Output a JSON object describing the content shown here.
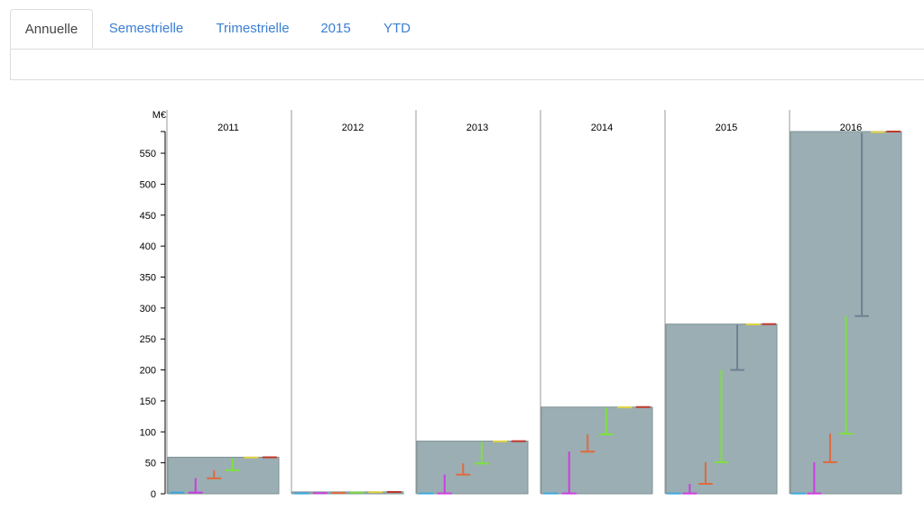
{
  "tabs": [
    {
      "label": "Annuelle",
      "active": true
    },
    {
      "label": "Semestrielle",
      "active": false
    },
    {
      "label": "Trimestrielle",
      "active": false
    },
    {
      "label": "2015",
      "active": false
    },
    {
      "label": "YTD",
      "active": false
    }
  ],
  "colors": {
    "tab_link": "#3a7fd4",
    "bar_fill": "#9aaeb3",
    "bar_stroke": "#7d9196",
    "panel_line": "#999999"
  },
  "chart_data": {
    "type": "bar",
    "yunit": "M€",
    "ylim": [
      0,
      585
    ],
    "yticks": [
      0,
      50,
      100,
      150,
      200,
      250,
      300,
      350,
      400,
      450,
      500,
      550
    ],
    "grid": false,
    "panels": [
      {
        "year": "2011",
        "total": 59,
        "segments": [
          {
            "color": "#3ba9e0",
            "start": 0,
            "end": 2
          },
          {
            "color": "#cc3de0",
            "start": 2,
            "end": 25
          },
          {
            "color": "#e06a3d",
            "start": 25,
            "end": 38
          },
          {
            "color": "#7fe03d",
            "start": 38,
            "end": 58
          },
          {
            "color": "#e0d23d",
            "start": 58,
            "end": 58.5
          },
          {
            "color": "#c0392b",
            "start": 58.5,
            "end": 59
          }
        ]
      },
      {
        "year": "2012",
        "total": 3,
        "segments": [
          {
            "color": "#3ba9e0",
            "start": 0,
            "end": 0.5
          },
          {
            "color": "#cc3de0",
            "start": 0.5,
            "end": 1
          },
          {
            "color": "#e06a3d",
            "start": 1,
            "end": 1.5
          },
          {
            "color": "#7fe03d",
            "start": 1.5,
            "end": 2
          },
          {
            "color": "#e0d23d",
            "start": 2,
            "end": 2.5
          },
          {
            "color": "#c0392b",
            "start": 2.5,
            "end": 3
          }
        ]
      },
      {
        "year": "2013",
        "total": 85,
        "segments": [
          {
            "color": "#3ba9e0",
            "start": 0,
            "end": 0.5
          },
          {
            "color": "#cc3de0",
            "start": 0.5,
            "end": 31
          },
          {
            "color": "#e06a3d",
            "start": 31,
            "end": 49
          },
          {
            "color": "#7fe03d",
            "start": 49,
            "end": 84
          },
          {
            "color": "#e0d23d",
            "start": 84,
            "end": 84.5
          },
          {
            "color": "#c0392b",
            "start": 84.5,
            "end": 85
          }
        ]
      },
      {
        "year": "2014",
        "total": 140,
        "segments": [
          {
            "color": "#3ba9e0",
            "start": 0,
            "end": 0.5
          },
          {
            "color": "#cc3de0",
            "start": 0.5,
            "end": 68
          },
          {
            "color": "#e06a3d",
            "start": 68,
            "end": 96
          },
          {
            "color": "#7fe03d",
            "start": 96,
            "end": 139
          },
          {
            "color": "#e0d23d",
            "start": 139,
            "end": 139.5
          },
          {
            "color": "#c0392b",
            "start": 139.5,
            "end": 140
          }
        ]
      },
      {
        "year": "2015",
        "total": 274,
        "segments": [
          {
            "color": "#3ba9e0",
            "start": 0,
            "end": 0.5
          },
          {
            "color": "#cc3de0",
            "start": 0.5,
            "end": 16
          },
          {
            "color": "#e06a3d",
            "start": 16,
            "end": 51
          },
          {
            "color": "#7fe03d",
            "start": 51,
            "end": 200
          },
          {
            "color": "#708090",
            "start": 200,
            "end": 273
          },
          {
            "color": "#e0d23d",
            "start": 273,
            "end": 273.5
          },
          {
            "color": "#c0392b",
            "start": 273.5,
            "end": 274
          }
        ]
      },
      {
        "year": "2016",
        "total": 585,
        "segments": [
          {
            "color": "#3ba9e0",
            "start": 0,
            "end": 0.5
          },
          {
            "color": "#cc3de0",
            "start": 0.5,
            "end": 51
          },
          {
            "color": "#e06a3d",
            "start": 51,
            "end": 97
          },
          {
            "color": "#7fe03d",
            "start": 97,
            "end": 287
          },
          {
            "color": "#708090",
            "start": 287,
            "end": 583
          },
          {
            "color": "#e0d23d",
            "start": 583,
            "end": 584
          },
          {
            "color": "#c0392b",
            "start": 584,
            "end": 585
          }
        ]
      }
    ]
  }
}
